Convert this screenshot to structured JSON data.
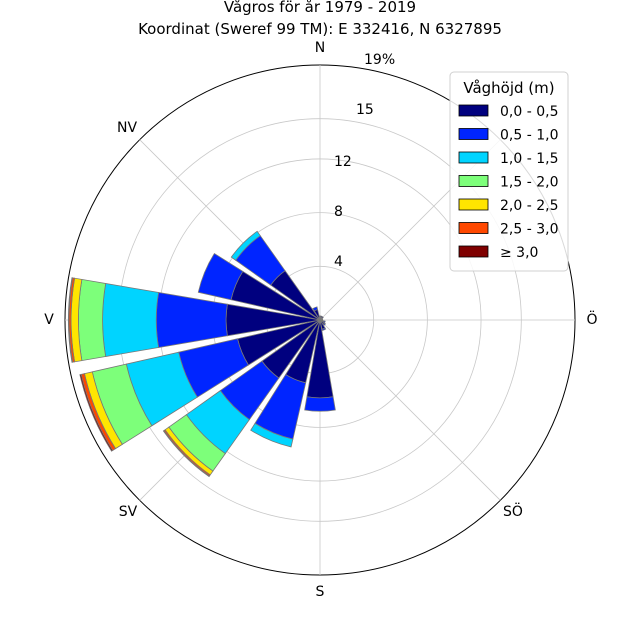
{
  "chart_data": {
    "type": "windrose",
    "title": "Vågros för år 1979 - 2019",
    "subtitle": "Koordinat (Sweref 99 TM): E 332416, N 6327895",
    "directions": [
      "N",
      "NNO",
      "NO",
      "ONO",
      "Ö",
      "OSO",
      "SÖ",
      "SSO",
      "S",
      "SSV",
      "SV",
      "VSV",
      "V",
      "VNV",
      "NV",
      "NNV"
    ],
    "direction_labels": [
      "N",
      "NO",
      "Ö",
      "SÖ",
      "S",
      "SV",
      "V",
      "NV"
    ],
    "radial_ticks": [
      "4",
      "8",
      "12",
      "15",
      "19%"
    ],
    "radial_tick_values": [
      4,
      8,
      12,
      15,
      19
    ],
    "rmax": 19,
    "legend": {
      "title": "Våghöjd (m)",
      "placement": "top-right",
      "entries": [
        {
          "label": "0,0 - 0,5",
          "color": "#00007f"
        },
        {
          "label": "0,5 - 1,0",
          "color": "#0025ff"
        },
        {
          "label": "1,0 - 1,5",
          "color": "#00d4ff"
        },
        {
          "label": "1,5 - 2,0",
          "color": "#7dff7a"
        },
        {
          "label": "2,0 - 2,5",
          "color": "#ffe500"
        },
        {
          "label": "2,5 - 3,0",
          "color": "#ff4800"
        },
        {
          "label": "≥ 3,0",
          "color": "#7f0000"
        }
      ]
    },
    "series": [
      {
        "name": "0,0 - 0,5",
        "values": [
          0.3,
          0.3,
          0.3,
          0.2,
          0.2,
          0.3,
          0.4,
          0.7,
          5.8,
          4.8,
          5.3,
          6.3,
          7.0,
          6.8,
          4.5,
          0.8
        ]
      },
      {
        "name": "0,5 - 1,0",
        "values": [
          0.0,
          0.0,
          0.0,
          0.0,
          0.0,
          0.1,
          0.1,
          0.1,
          1.0,
          4.3,
          3.8,
          4.5,
          5.2,
          2.5,
          3.2,
          0.2
        ]
      },
      {
        "name": "1,0 - 1,5",
        "values": [
          0.0,
          0.0,
          0.0,
          0.0,
          0.0,
          0.0,
          0.0,
          0.0,
          0.0,
          0.6,
          3.1,
          4.0,
          4.0,
          0.0,
          0.4,
          0.0
        ]
      },
      {
        "name": "1,5 - 2,0",
        "values": [
          0.0,
          0.0,
          0.0,
          0.0,
          0.0,
          0.0,
          0.0,
          0.0,
          0.0,
          0.0,
          1.6,
          2.6,
          1.8,
          0.0,
          0.0,
          0.0
        ]
      },
      {
        "name": "2,0 - 2,5",
        "values": [
          0.0,
          0.0,
          0.0,
          0.0,
          0.0,
          0.0,
          0.0,
          0.0,
          0.0,
          0.0,
          0.35,
          0.6,
          0.55,
          0.0,
          0.0,
          0.0
        ]
      },
      {
        "name": "2,5 - 3,0",
        "values": [
          0.0,
          0.0,
          0.0,
          0.0,
          0.0,
          0.0,
          0.0,
          0.0,
          0.0,
          0.0,
          0.1,
          0.25,
          0.15,
          0.0,
          0.0,
          0.0
        ]
      },
      {
        "name": "≥ 3,0",
        "values": [
          0.0,
          0.0,
          0.0,
          0.0,
          0.0,
          0.0,
          0.0,
          0.0,
          0.0,
          0.0,
          0.05,
          0.1,
          0.05,
          0.0,
          0.0,
          0.0
        ]
      }
    ]
  }
}
